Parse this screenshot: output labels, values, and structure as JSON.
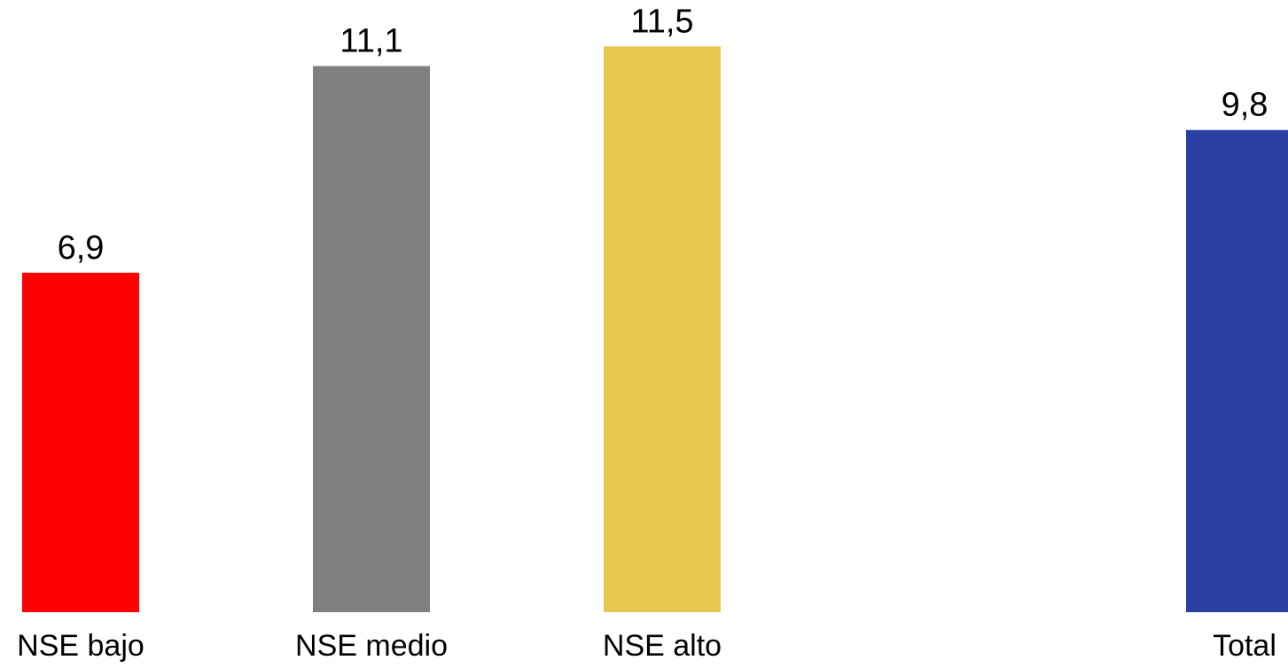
{
  "chart_data": {
    "type": "bar",
    "categories": [
      "NSE bajo",
      "NSE medio",
      "NSE alto",
      "Total"
    ],
    "values": [
      6.9,
      11.1,
      11.5,
      9.8
    ],
    "data_labels": [
      "6,9",
      "11,1",
      "11,5",
      "9,8"
    ],
    "colors": [
      "#ff0000",
      "#7f7f7f",
      "#e8c74f",
      "#2a41a1"
    ],
    "title": "",
    "xlabel": "",
    "ylabel": "",
    "ylim": [
      0,
      12.1
    ],
    "grid": false,
    "legend": "none"
  }
}
